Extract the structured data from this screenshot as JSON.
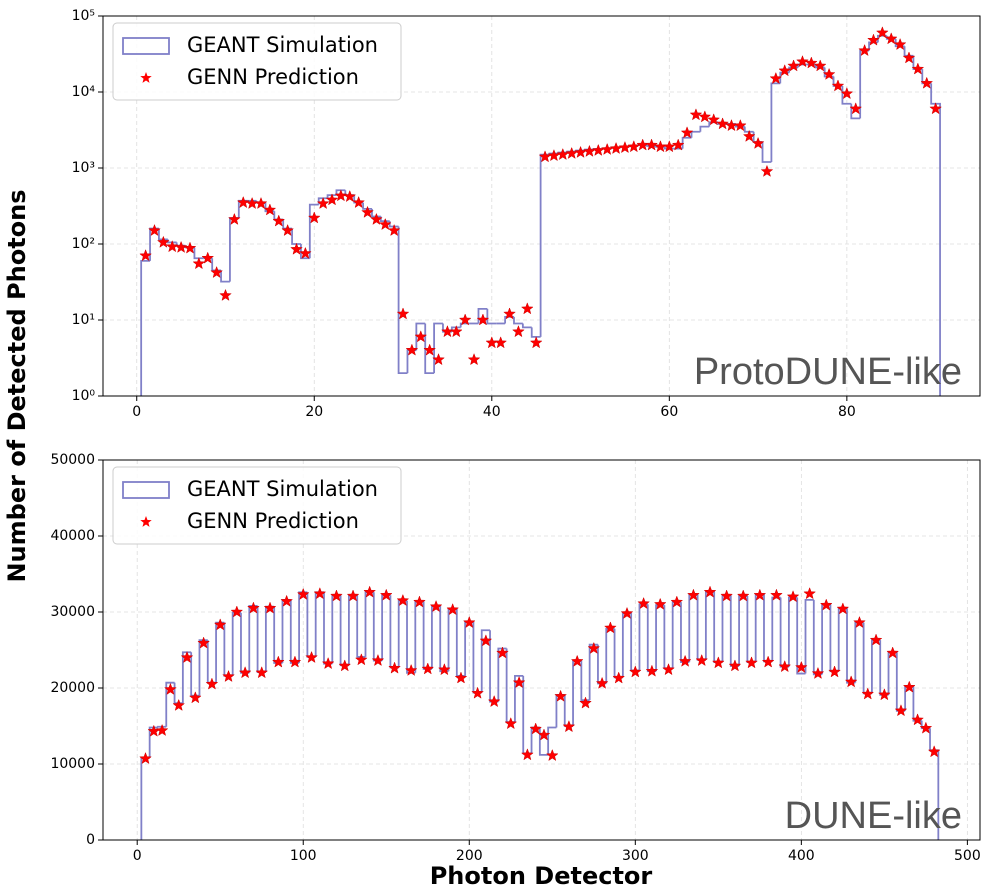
{
  "chart_data": [
    {
      "type": "histogram",
      "yscale": "log",
      "grid": true,
      "legend": "upper left",
      "ylabel": "Number of Detected Photons",
      "annotation": "ProtoDUNE-like",
      "xlim": [
        -3.8,
        95
      ],
      "xticks": [
        0,
        20,
        40,
        60,
        80
      ],
      "ylim": [
        1,
        100000
      ],
      "yticks": [
        {
          "value": 1,
          "label": "10⁰"
        },
        {
          "value": 10,
          "label": "10¹"
        },
        {
          "value": 100,
          "label": "10²"
        },
        {
          "value": 1000,
          "label": "10³"
        },
        {
          "value": 10000,
          "label": "10⁴"
        },
        {
          "value": 100000,
          "label": "10⁵"
        }
      ],
      "bins": [
        0.5,
        1.5,
        2.5,
        3.5,
        4.5,
        5.5,
        6.5,
        7.5,
        8.5,
        9.5,
        10.5,
        11.5,
        12.5,
        13.5,
        14.5,
        15.5,
        16.5,
        17.5,
        18.5,
        19.5,
        20.5,
        21.5,
        22.5,
        23.5,
        24.5,
        25.5,
        26.5,
        27.5,
        28.5,
        29.5,
        30.5,
        31.5,
        32.5,
        33.5,
        34.5,
        35.5,
        36.5,
        37.5,
        38.5,
        39.5,
        40.5,
        41.5,
        42.5,
        43.5,
        44.5,
        45.5,
        46.5,
        47.5,
        48.5,
        49.5,
        50.5,
        51.5,
        52.5,
        53.5,
        54.5,
        55.5,
        56.5,
        57.5,
        58.5,
        59.5,
        60.5,
        61.5,
        62.5,
        63.5,
        64.5,
        65.5,
        66.5,
        67.5,
        68.5,
        69.5,
        70.5,
        71.5,
        72.5,
        73.5,
        74.5,
        75.5,
        76.5,
        77.5,
        78.5,
        79.5,
        80.5,
        81.5,
        82.5,
        83.5,
        84.5,
        85.5,
        86.5,
        87.5,
        88.5,
        89.5,
        90.5
      ],
      "series": [
        {
          "name": "GEANT Simulation",
          "color": "#8080c8",
          "style": "step",
          "values": [
            60,
            160,
            115,
            105,
            95,
            90,
            65,
            65,
            45,
            32,
            220,
            370,
            370,
            350,
            270,
            210,
            160,
            100,
            65,
            330,
            400,
            440,
            510,
            440,
            350,
            290,
            230,
            200,
            170,
            2,
            4,
            9,
            2,
            9,
            7,
            8,
            9,
            9,
            14,
            9,
            9,
            11,
            9,
            8,
            6,
            1500,
            1550,
            1600,
            1650,
            1700,
            1750,
            1780,
            1800,
            1850,
            1900,
            1950,
            2000,
            1950,
            1900,
            1800,
            1800,
            2500,
            3000,
            3500,
            4000,
            3800,
            3800,
            3500,
            3000,
            2200,
            1200,
            13000,
            18000,
            21000,
            23000,
            23000,
            21000,
            16000,
            12000,
            7000,
            4500,
            35000,
            45000,
            55000,
            50000,
            40000,
            30000,
            20000,
            13000,
            7000
          ]
        },
        {
          "name": "GENN Prediction",
          "color": "#ff0000",
          "style": "star",
          "values": [
            70,
            150,
            105,
            92,
            90,
            88,
            55,
            65,
            42,
            21,
            210,
            350,
            340,
            340,
            280,
            200,
            150,
            85,
            75,
            220,
            340,
            380,
            430,
            420,
            350,
            260,
            210,
            180,
            150,
            12,
            4,
            6,
            4,
            3,
            7,
            7,
            10,
            3,
            10,
            5,
            5,
            12,
            7,
            14,
            5,
            1400,
            1450,
            1500,
            1550,
            1600,
            1650,
            1700,
            1750,
            1800,
            1850,
            1900,
            2000,
            2000,
            1900,
            1900,
            2000,
            2900,
            5000,
            4700,
            4300,
            3800,
            3600,
            3600,
            2600,
            2100,
            900,
            15000,
            19000,
            22000,
            25000,
            24000,
            22000,
            17000,
            12000,
            9500,
            6000,
            35000,
            48000,
            60000,
            50000,
            42000,
            28000,
            20000,
            13000,
            6000
          ]
        }
      ]
    },
    {
      "type": "histogram",
      "yscale": "linear",
      "grid": true,
      "legend": "upper left",
      "xlabel": "Photon Detector",
      "annotation": "DUNE-like",
      "xlim": [
        -20.6,
        507.6
      ],
      "xticks": [
        0,
        100,
        200,
        300,
        400,
        500
      ],
      "ylim": [
        0,
        50000
      ],
      "yticks": [
        0,
        10000,
        20000,
        30000,
        40000,
        50000
      ],
      "bins": [
        2.5,
        7.5,
        12.5,
        17.5,
        22.5,
        27.5,
        32.5,
        37.5,
        42.5,
        47.5,
        52.5,
        57.5,
        62.5,
        67.5,
        72.5,
        77.5,
        82.5,
        87.5,
        92.5,
        97.5,
        102.5,
        107.5,
        112.5,
        117.5,
        122.5,
        127.5,
        132.5,
        137.5,
        142.5,
        147.5,
        152.5,
        157.5,
        162.5,
        167.5,
        172.5,
        177.5,
        182.5,
        187.5,
        192.5,
        197.5,
        202.5,
        207.5,
        212.5,
        217.5,
        222.5,
        227.5,
        232.5,
        237.5,
        242.5,
        247.5,
        252.5,
        257.5,
        262.5,
        267.5,
        272.5,
        277.5,
        282.5,
        287.5,
        292.5,
        297.5,
        302.5,
        307.5,
        312.5,
        317.5,
        322.5,
        327.5,
        332.5,
        337.5,
        342.5,
        347.5,
        352.5,
        357.5,
        362.5,
        367.5,
        372.5,
        377.5,
        382.5,
        387.5,
        392.5,
        397.5,
        402.5,
        407.5,
        412.5,
        417.5,
        422.5,
        427.5,
        432.5,
        437.5,
        442.5,
        447.5,
        452.5,
        457.5,
        462.5,
        467.5,
        472.5,
        477.5,
        482.5
      ],
      "series": [
        {
          "name": "GEANT Simulation",
          "color": "#8080c8",
          "style": "step",
          "values": [
            10800,
            14800,
            14900,
            20700,
            18000,
            24700,
            19000,
            26300,
            20700,
            28600,
            21600,
            29900,
            22000,
            30800,
            22100,
            30700,
            23300,
            31600,
            23300,
            32600,
            24100,
            32600,
            23200,
            32200,
            23000,
            32200,
            24100,
            32600,
            23600,
            32200,
            22700,
            31500,
            22000,
            31400,
            22500,
            30800,
            22200,
            30400,
            21600,
            28700,
            19400,
            27600,
            18200,
            25200,
            15500,
            21600,
            11400,
            14800,
            11200,
            14800,
            19100,
            15000,
            23600,
            18400,
            25700,
            20600,
            27800,
            21400,
            29900,
            22300,
            31000,
            22200,
            30900,
            22600,
            31300,
            23400,
            32300,
            23700,
            32700,
            23400,
            32200,
            22900,
            32100,
            23400,
            32300,
            23500,
            31900,
            22800,
            31900,
            21900,
            31600,
            21800,
            31000,
            22200,
            30500,
            20700,
            28600,
            19300,
            26300,
            19100,
            24700,
            17000,
            20200,
            15700,
            14700,
            11800
          ]
        },
        {
          "name": "GENN Prediction",
          "color": "#ff0000",
          "style": "star",
          "values": [
            10700,
            14300,
            14400,
            19800,
            17700,
            24000,
            18700,
            25900,
            20500,
            28300,
            21500,
            30000,
            22000,
            30500,
            22000,
            30500,
            23400,
            31400,
            23400,
            32300,
            24000,
            32400,
            23200,
            32100,
            22900,
            32100,
            23700,
            32600,
            23600,
            32200,
            22600,
            31500,
            22300,
            31300,
            22500,
            30700,
            22400,
            30300,
            21300,
            28600,
            19300,
            26200,
            18200,
            24600,
            15300,
            20700,
            11200,
            14600,
            13800,
            11100,
            18900,
            14900,
            23500,
            18000,
            25200,
            20600,
            27900,
            21300,
            29800,
            22100,
            31100,
            22200,
            31000,
            22400,
            31300,
            23500,
            32200,
            23600,
            32600,
            23300,
            32100,
            22900,
            32100,
            23300,
            32200,
            23400,
            32200,
            22800,
            32000,
            22700,
            32400,
            21900,
            30900,
            22100,
            30400,
            20800,
            28600,
            19200,
            26300,
            19100,
            24600,
            17000,
            20100,
            15800,
            14700,
            11600
          ]
        }
      ]
    }
  ]
}
